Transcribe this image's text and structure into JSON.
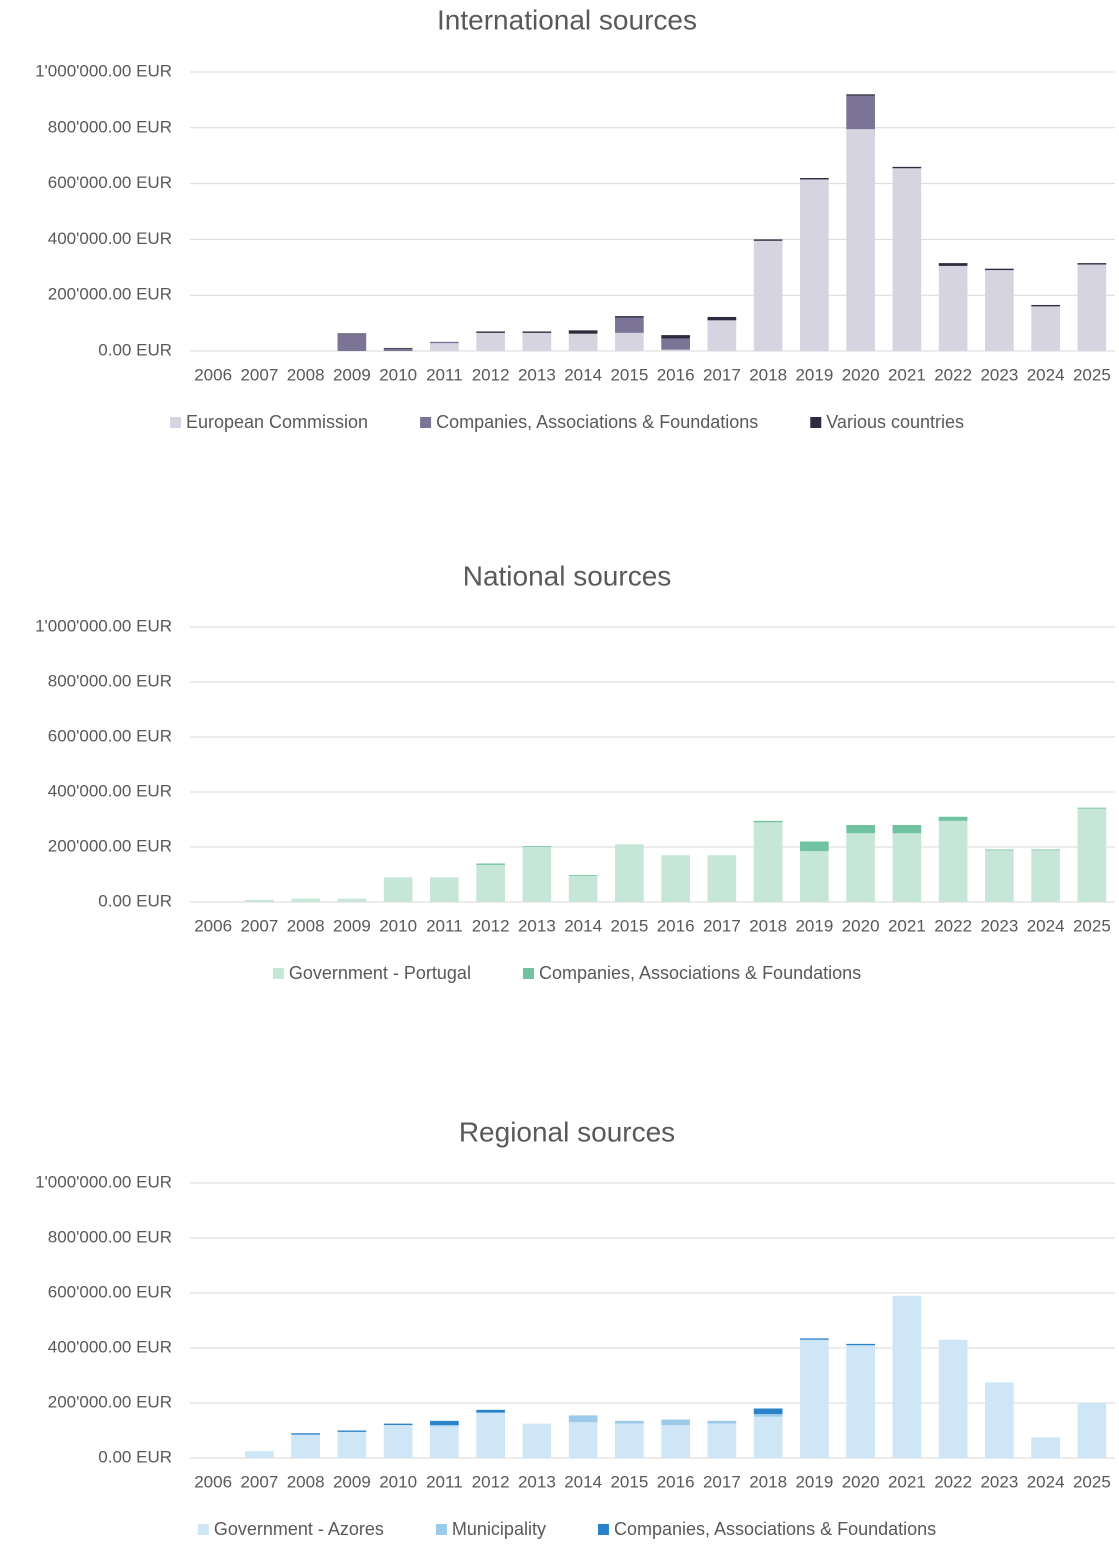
{
  "chart_data": [
    {
      "type": "stacked_bar",
      "title": "International sources",
      "categories": [
        "2006",
        "2007",
        "2008",
        "2009",
        "2010",
        "2011",
        "2012",
        "2013",
        "2014",
        "2015",
        "2016",
        "2017",
        "2018",
        "2019",
        "2020",
        "2021",
        "2022",
        "2023",
        "2024",
        "2025"
      ],
      "series": [
        {
          "name": "European Commission",
          "color": "#d6d4e0",
          "values": [
            0,
            0,
            0,
            0,
            0,
            28000,
            65000,
            65000,
            62000,
            65000,
            5000,
            110000,
            395000,
            615000,
            795000,
            655000,
            305000,
            290000,
            160000,
            310000
          ]
        },
        {
          "name": "Companies, Associations & Foundations",
          "color": "#7b7497",
          "values": [
            0,
            0,
            0,
            60000,
            8000,
            5000,
            0,
            0,
            0,
            55000,
            40000,
            0,
            0,
            0,
            120000,
            0,
            0,
            0,
            0,
            0
          ]
        },
        {
          "name": "Various countries",
          "color": "#2e2b3e",
          "values": [
            0,
            0,
            0,
            3000,
            3000,
            0,
            5000,
            5000,
            12000,
            5000,
            12000,
            12000,
            5000,
            5000,
            5000,
            5000,
            10000,
            5000,
            5000,
            5000
          ]
        }
      ],
      "ylim": [
        0,
        1000000
      ],
      "yticks": [
        {
          "value": 0,
          "label": "0.00 EUR"
        },
        {
          "value": 200000,
          "label": "200'000.00 EUR"
        },
        {
          "value": 400000,
          "label": "400'000.00 EUR"
        },
        {
          "value": 600000,
          "label": "600'000.00 EUR"
        },
        {
          "value": 800000,
          "label": "800'000.00 EUR"
        },
        {
          "value": 1000000,
          "label": "1'000'000.00 EUR"
        }
      ],
      "grid": true,
      "legend": "bottom"
    },
    {
      "type": "stacked_bar",
      "title": "National sources",
      "categories": [
        "2006",
        "2007",
        "2008",
        "2009",
        "2010",
        "2011",
        "2012",
        "2013",
        "2014",
        "2015",
        "2016",
        "2017",
        "2018",
        "2019",
        "2020",
        "2021",
        "2022",
        "2023",
        "2024",
        "2025"
      ],
      "series": [
        {
          "name": "Government - Portugal",
          "color": "#c6e7d8",
          "values": [
            0,
            8000,
            12000,
            12000,
            90000,
            90000,
            135000,
            200000,
            95000,
            210000,
            170000,
            170000,
            290000,
            185000,
            250000,
            250000,
            295000,
            188000,
            188000,
            340000
          ]
        },
        {
          "name": "Companies, Associations & Foundations",
          "color": "#71c2a1",
          "values": [
            0,
            0,
            0,
            0,
            0,
            0,
            5000,
            3000,
            3000,
            0,
            0,
            0,
            5000,
            35000,
            30000,
            30000,
            15000,
            3000,
            3000,
            3000
          ]
        }
      ],
      "ylim": [
        0,
        1000000
      ],
      "yticks": [
        {
          "value": 0,
          "label": "0.00 EUR"
        },
        {
          "value": 200000,
          "label": "200'000.00 EUR"
        },
        {
          "value": 400000,
          "label": "400'000.00 EUR"
        },
        {
          "value": 600000,
          "label": "600'000.00 EUR"
        },
        {
          "value": 800000,
          "label": "800'000.00 EUR"
        },
        {
          "value": 1000000,
          "label": "1'000'000.00 EUR"
        }
      ],
      "grid": true,
      "legend": "bottom"
    },
    {
      "type": "stacked_bar",
      "title": "Regional sources",
      "categories": [
        "2006",
        "2007",
        "2008",
        "2009",
        "2010",
        "2011",
        "2012",
        "2013",
        "2014",
        "2015",
        "2016",
        "2017",
        "2018",
        "2019",
        "2020",
        "2021",
        "2022",
        "2023",
        "2024",
        "2025"
      ],
      "series": [
        {
          "name": "Government - Azores",
          "color": "#cfe6f6",
          "values": [
            0,
            25000,
            85000,
            95000,
            120000,
            115000,
            165000,
            125000,
            130000,
            125000,
            120000,
            125000,
            150000,
            430000,
            410000,
            590000,
            430000,
            275000,
            75000,
            200000
          ]
        },
        {
          "name": "Municipality",
          "color": "#9ccbea",
          "values": [
            0,
            0,
            0,
            0,
            0,
            5000,
            0,
            0,
            25000,
            10000,
            20000,
            10000,
            10000,
            0,
            0,
            0,
            0,
            0,
            0,
            0
          ]
        },
        {
          "name": "Companies, Associations & Foundations",
          "color": "#2a82c9",
          "values": [
            0,
            0,
            5000,
            5000,
            5000,
            15000,
            10000,
            0,
            0,
            0,
            0,
            0,
            20000,
            5000,
            5000,
            0,
            0,
            0,
            0,
            0
          ]
        }
      ],
      "ylim": [
        0,
        1000000
      ],
      "yticks": [
        {
          "value": 0,
          "label": "0.00 EUR"
        },
        {
          "value": 200000,
          "label": "200'000.00 EUR"
        },
        {
          "value": 400000,
          "label": "400'000.00 EUR"
        },
        {
          "value": 600000,
          "label": "600'000.00 EUR"
        },
        {
          "value": 800000,
          "label": "800'000.00 EUR"
        },
        {
          "value": 1000000,
          "label": "1'000'000.00 EUR"
        }
      ],
      "grid": true,
      "legend": "bottom"
    }
  ]
}
